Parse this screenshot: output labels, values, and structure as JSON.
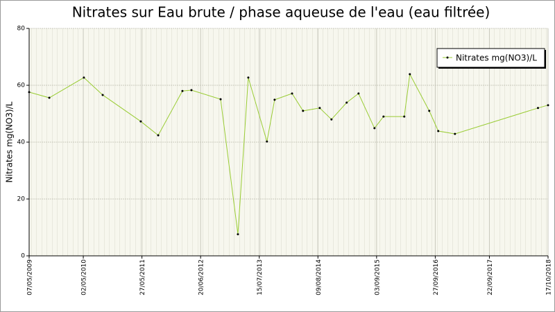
{
  "chart_data": {
    "type": "line",
    "title": "Nitrates sur Eau brute / phase aqueuse de l'eau (eau filtrée)",
    "y_label": "Nitrates mg(NO3)/L",
    "x": [
      "2009-05-07",
      "2009-09-18",
      "2010-05-06",
      "2010-09-08",
      "2011-05-19",
      "2011-09-12",
      "2012-02-20",
      "2012-04-20",
      "2012-10-31",
      "2013-02-23",
      "2013-05-03",
      "2013-09-04",
      "2013-10-25",
      "2014-02-18",
      "2014-05-02",
      "2014-08-21",
      "2014-11-07",
      "2015-02-16",
      "2015-05-06",
      "2015-08-20",
      "2015-10-19",
      "2016-03-05",
      "2016-04-11",
      "2016-08-18",
      "2016-10-17",
      "2017-02-05",
      "2018-08-11",
      "2018-10-17"
    ],
    "series": [
      {
        "name": "Nitrates mg(NO3)/L",
        "color": "#99cc33",
        "values": [
          57.6,
          55.6,
          62.7,
          56.6,
          47.3,
          42.4,
          58,
          58.3,
          55.1,
          7.6,
          62.7,
          40.2,
          54.9,
          57.1,
          51,
          52,
          48,
          53.9,
          57.1,
          44.9,
          49,
          49,
          63.9,
          51,
          43.9,
          42.9,
          52,
          53
        ]
      }
    ],
    "xlim": [
      "2009-05-07",
      "2018-10-17"
    ],
    "xticks": [
      {
        "value": "2009-05-07",
        "label": "07/05/2009"
      },
      {
        "value": "2010-05-02",
        "label": "02/05/2010"
      },
      {
        "value": "2011-05-27",
        "label": "27/05/2011"
      },
      {
        "value": "2012-06-20",
        "label": "20/06/2012"
      },
      {
        "value": "2013-07-15",
        "label": "15/07/2013"
      },
      {
        "value": "2014-08-09",
        "label": "09/08/2014"
      },
      {
        "value": "2015-09-03",
        "label": "03/09/2015"
      },
      {
        "value": "2016-09-27",
        "label": "27/09/2016"
      },
      {
        "value": "2017-09-22",
        "label": "22/09/2017"
      },
      {
        "value": "2018-10-17",
        "label": "17/10/2018"
      }
    ],
    "ylim": [
      0,
      80
    ],
    "yticks": [
      0,
      20,
      40,
      60,
      80
    ],
    "grid": true,
    "legend": "top-right"
  }
}
